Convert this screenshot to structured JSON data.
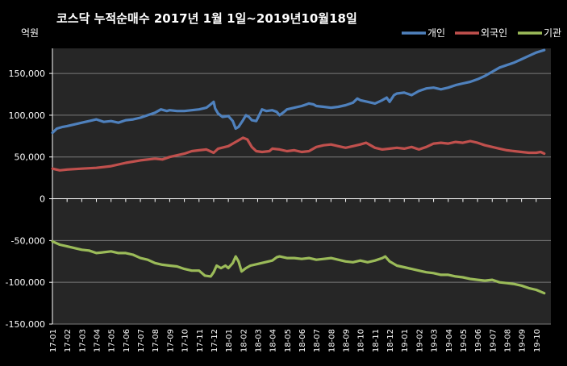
{
  "chart_data": {
    "type": "line",
    "title": "코스닥 누적순매수 2017년 1월 1일~2019년10월18일",
    "ylabel": "억원",
    "ylim": [
      -150000,
      180000
    ],
    "yticks": [
      150000,
      100000,
      50000,
      0,
      -50000,
      -100000,
      -150000
    ],
    "ytick_labels": [
      "150,000",
      "100,000",
      "50,000",
      "0",
      "-50,000",
      "-100,000",
      "-150,000"
    ],
    "x": [
      "17-01",
      "17-02",
      "17-03",
      "17-04",
      "17-05",
      "17-06",
      "17-07",
      "17-08",
      "17-09",
      "17-10",
      "17-11",
      "17-12",
      "18-01",
      "18-02",
      "18-03",
      "18-04",
      "18-05",
      "18-06",
      "18-07",
      "18-08",
      "18-09",
      "18-10",
      "18-11",
      "18-12",
      "19-01",
      "19-02",
      "19-03",
      "19-04",
      "19-05",
      "19-06",
      "19-07",
      "19-08",
      "19-09",
      "19-10"
    ],
    "x_end": 33.55,
    "grid": "horizontal",
    "legend_position": "top-right",
    "series": [
      {
        "name": "개인",
        "color": "#4f81bd",
        "points": [
          [
            0,
            79000
          ],
          [
            0.3,
            84000
          ],
          [
            0.7,
            86000
          ],
          [
            1,
            87000
          ],
          [
            1.5,
            89000
          ],
          [
            2,
            91000
          ],
          [
            2.5,
            93000
          ],
          [
            3,
            95000
          ],
          [
            3.5,
            92000
          ],
          [
            4,
            93000
          ],
          [
            4.5,
            91000
          ],
          [
            5,
            94000
          ],
          [
            5.5,
            95000
          ],
          [
            6,
            97000
          ],
          [
            6.5,
            100000
          ],
          [
            7,
            103000
          ],
          [
            7.4,
            107000
          ],
          [
            7.8,
            105000
          ],
          [
            8,
            106000
          ],
          [
            8.5,
            105000
          ],
          [
            9,
            105000
          ],
          [
            9.5,
            106000
          ],
          [
            10,
            107000
          ],
          [
            10.5,
            109000
          ],
          [
            10.8,
            113000
          ],
          [
            11,
            116000
          ],
          [
            11.1,
            108000
          ],
          [
            11.3,
            102000
          ],
          [
            11.6,
            98000
          ],
          [
            12,
            99000
          ],
          [
            12.3,
            93000
          ],
          [
            12.5,
            84000
          ],
          [
            12.7,
            86000
          ],
          [
            13,
            94000
          ],
          [
            13.2,
            100000
          ],
          [
            13.4,
            98000
          ],
          [
            13.6,
            94000
          ],
          [
            13.9,
            93000
          ],
          [
            14.1,
            100000
          ],
          [
            14.3,
            107000
          ],
          [
            14.6,
            105000
          ],
          [
            15,
            106000
          ],
          [
            15.3,
            104000
          ],
          [
            15.5,
            100000
          ],
          [
            15.8,
            104000
          ],
          [
            16,
            107000
          ],
          [
            16.5,
            109000
          ],
          [
            17,
            111000
          ],
          [
            17.5,
            114000
          ],
          [
            17.8,
            113000
          ],
          [
            18,
            111000
          ],
          [
            18.5,
            110000
          ],
          [
            19,
            109000
          ],
          [
            19.5,
            110000
          ],
          [
            20,
            112000
          ],
          [
            20.5,
            115000
          ],
          [
            20.8,
            120000
          ],
          [
            21,
            118000
          ],
          [
            21.5,
            116000
          ],
          [
            22,
            114000
          ],
          [
            22.5,
            118000
          ],
          [
            22.8,
            121000
          ],
          [
            23,
            116000
          ],
          [
            23.3,
            124000
          ],
          [
            23.5,
            126000
          ],
          [
            24,
            127000
          ],
          [
            24.5,
            124000
          ],
          [
            25,
            129000
          ],
          [
            25.5,
            132000
          ],
          [
            26,
            133000
          ],
          [
            26.5,
            131000
          ],
          [
            27,
            133000
          ],
          [
            27.5,
            136000
          ],
          [
            28,
            138000
          ],
          [
            28.5,
            140000
          ],
          [
            29,
            143000
          ],
          [
            29.5,
            147000
          ],
          [
            30,
            152000
          ],
          [
            30.5,
            157000
          ],
          [
            31,
            160000
          ],
          [
            31.5,
            163000
          ],
          [
            32,
            167000
          ],
          [
            32.5,
            171000
          ],
          [
            33,
            175000
          ],
          [
            33.55,
            178000
          ]
        ]
      },
      {
        "name": "외국인",
        "color": "#c0504d",
        "points": [
          [
            0,
            36000
          ],
          [
            0.5,
            34000
          ],
          [
            1,
            35000
          ],
          [
            2,
            36000
          ],
          [
            3,
            37000
          ],
          [
            4,
            39000
          ],
          [
            5,
            43000
          ],
          [
            6,
            46000
          ],
          [
            7,
            48000
          ],
          [
            7.5,
            47000
          ],
          [
            8,
            50000
          ],
          [
            9,
            54000
          ],
          [
            9.5,
            57000
          ],
          [
            10,
            58000
          ],
          [
            10.5,
            59000
          ],
          [
            11,
            55000
          ],
          [
            11.3,
            60000
          ],
          [
            12,
            63000
          ],
          [
            12.5,
            68000
          ],
          [
            13,
            73000
          ],
          [
            13.3,
            71000
          ],
          [
            13.6,
            62000
          ],
          [
            13.9,
            57000
          ],
          [
            14.3,
            56000
          ],
          [
            14.8,
            57000
          ],
          [
            15,
            60000
          ],
          [
            15.5,
            59000
          ],
          [
            16,
            57000
          ],
          [
            16.5,
            58000
          ],
          [
            17,
            56000
          ],
          [
            17.5,
            57000
          ],
          [
            18,
            62000
          ],
          [
            18.5,
            64000
          ],
          [
            19,
            65000
          ],
          [
            19.5,
            63000
          ],
          [
            20,
            61000
          ],
          [
            20.5,
            63000
          ],
          [
            21,
            65000
          ],
          [
            21.4,
            67000
          ],
          [
            21.7,
            64000
          ],
          [
            22,
            61000
          ],
          [
            22.5,
            59000
          ],
          [
            23,
            60000
          ],
          [
            23.5,
            61000
          ],
          [
            24,
            60000
          ],
          [
            24.5,
            62000
          ],
          [
            25,
            59000
          ],
          [
            25.5,
            62000
          ],
          [
            26,
            66000
          ],
          [
            26.5,
            67000
          ],
          [
            27,
            66000
          ],
          [
            27.5,
            68000
          ],
          [
            28,
            67000
          ],
          [
            28.5,
            69000
          ],
          [
            29,
            67000
          ],
          [
            29.5,
            64000
          ],
          [
            30,
            62000
          ],
          [
            30.5,
            60000
          ],
          [
            31,
            58000
          ],
          [
            31.5,
            57000
          ],
          [
            32,
            56000
          ],
          [
            32.5,
            55000
          ],
          [
            33,
            55000
          ],
          [
            33.3,
            56000
          ],
          [
            33.55,
            54000
          ]
        ]
      },
      {
        "name": "기관",
        "color": "#9bbb59",
        "points": [
          [
            0,
            -51000
          ],
          [
            0.5,
            -55000
          ],
          [
            1,
            -57000
          ],
          [
            1.5,
            -59000
          ],
          [
            2,
            -61000
          ],
          [
            2.5,
            -62000
          ],
          [
            3,
            -65000
          ],
          [
            3.5,
            -64000
          ],
          [
            4,
            -63000
          ],
          [
            4.5,
            -65000
          ],
          [
            5,
            -65000
          ],
          [
            5.5,
            -67000
          ],
          [
            6,
            -71000
          ],
          [
            6.5,
            -73000
          ],
          [
            7,
            -77000
          ],
          [
            7.5,
            -79000
          ],
          [
            8,
            -80000
          ],
          [
            8.5,
            -81000
          ],
          [
            9,
            -84000
          ],
          [
            9.5,
            -86000
          ],
          [
            10,
            -86000
          ],
          [
            10.4,
            -92000
          ],
          [
            10.8,
            -93000
          ],
          [
            11,
            -88000
          ],
          [
            11.2,
            -80000
          ],
          [
            11.5,
            -83000
          ],
          [
            11.8,
            -80000
          ],
          [
            12,
            -83000
          ],
          [
            12.3,
            -77000
          ],
          [
            12.5,
            -69000
          ],
          [
            12.7,
            -75000
          ],
          [
            12.9,
            -87000
          ],
          [
            13.2,
            -83000
          ],
          [
            13.5,
            -80000
          ],
          [
            14,
            -78000
          ],
          [
            14.5,
            -76000
          ],
          [
            15,
            -74000
          ],
          [
            15.3,
            -70000
          ],
          [
            15.5,
            -69000
          ],
          [
            16,
            -71000
          ],
          [
            16.5,
            -71000
          ],
          [
            17,
            -72000
          ],
          [
            17.5,
            -71000
          ],
          [
            18,
            -73000
          ],
          [
            18.5,
            -72000
          ],
          [
            19,
            -71000
          ],
          [
            19.5,
            -73000
          ],
          [
            20,
            -75000
          ],
          [
            20.5,
            -76000
          ],
          [
            21,
            -74000
          ],
          [
            21.5,
            -76000
          ],
          [
            22,
            -74000
          ],
          [
            22.5,
            -71000
          ],
          [
            22.7,
            -69000
          ],
          [
            23,
            -75000
          ],
          [
            23.5,
            -80000
          ],
          [
            24,
            -82000
          ],
          [
            24.5,
            -84000
          ],
          [
            25,
            -86000
          ],
          [
            25.5,
            -88000
          ],
          [
            26,
            -89000
          ],
          [
            26.5,
            -91000
          ],
          [
            27,
            -91000
          ],
          [
            27.5,
            -93000
          ],
          [
            28,
            -94000
          ],
          [
            28.5,
            -96000
          ],
          [
            29,
            -97000
          ],
          [
            29.5,
            -98000
          ],
          [
            30,
            -97000
          ],
          [
            30.5,
            -100000
          ],
          [
            31,
            -101000
          ],
          [
            31.5,
            -102000
          ],
          [
            32,
            -104000
          ],
          [
            32.5,
            -107000
          ],
          [
            33,
            -109000
          ],
          [
            33.55,
            -113000
          ]
        ]
      }
    ]
  }
}
